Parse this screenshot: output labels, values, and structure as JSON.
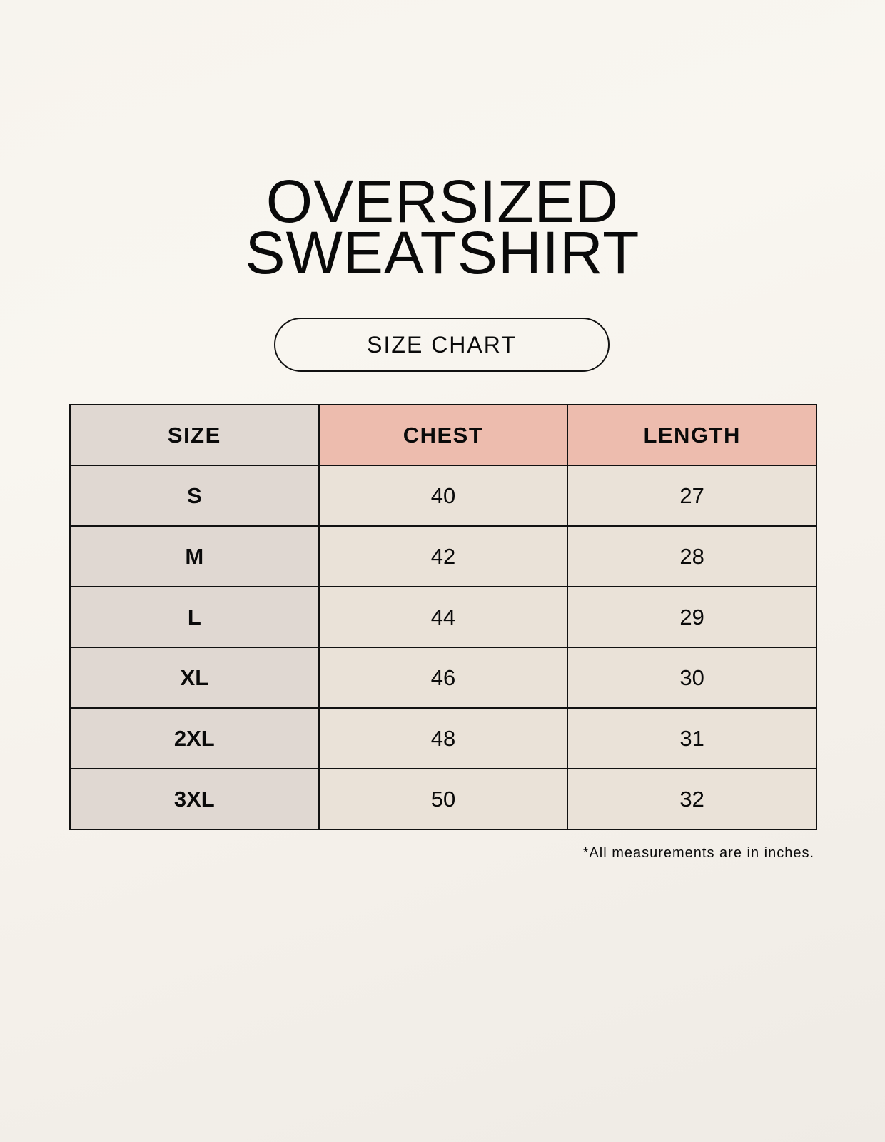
{
  "title_lines": [
    "OVERSIZED",
    "SWEATSHIRT"
  ],
  "subtitle": "SIZE CHART",
  "table": {
    "headers": [
      "SIZE",
      "CHEST",
      "LENGTH"
    ],
    "rows": [
      [
        "S",
        "40",
        "27"
      ],
      [
        "M",
        "42",
        "28"
      ],
      [
        "L",
        "44",
        "29"
      ],
      [
        "XL",
        "46",
        "30"
      ],
      [
        "2XL",
        "48",
        "31"
      ],
      [
        "3XL",
        "50",
        "32"
      ]
    ]
  },
  "footnote": "*All measurements are in inches.",
  "colors": {
    "size_column": "#e0d8d2",
    "header_accent": "#edbcae",
    "cell": "#eae2d8"
  }
}
